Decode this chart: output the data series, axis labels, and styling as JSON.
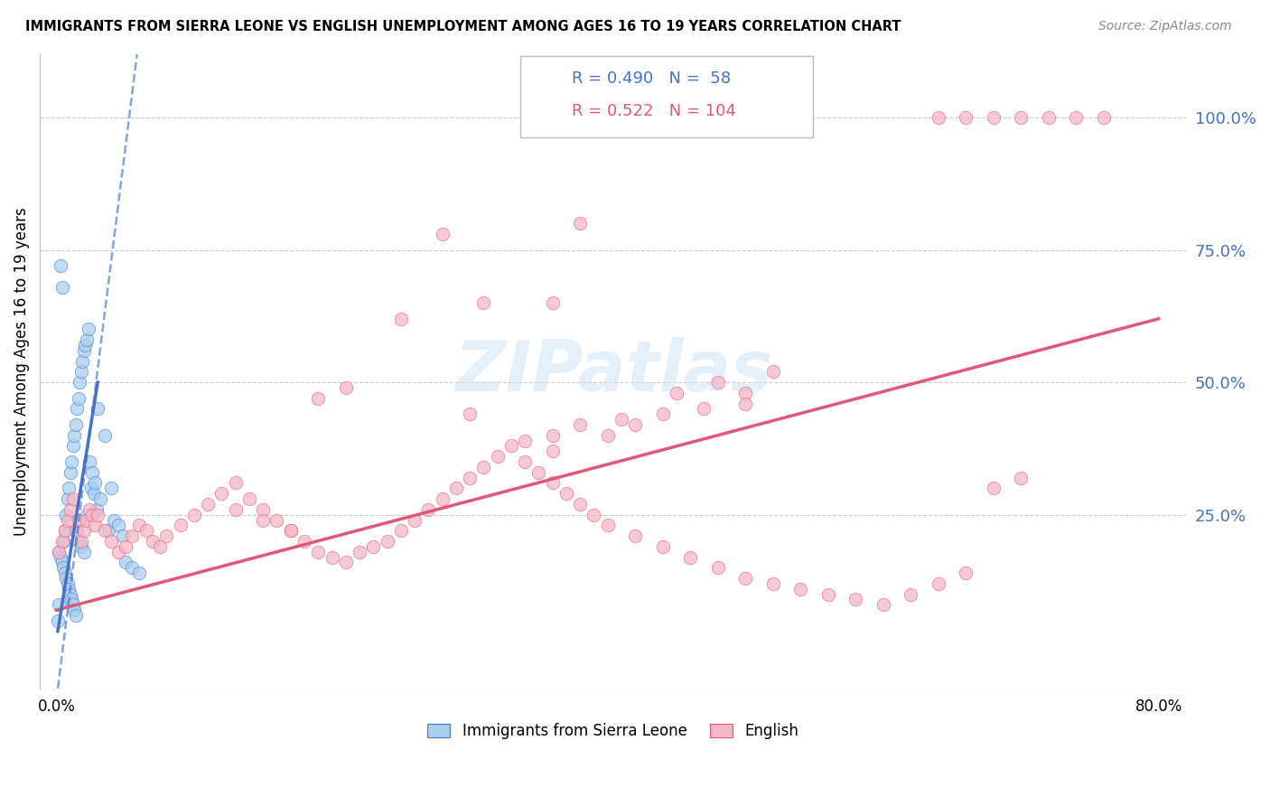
{
  "title": "IMMIGRANTS FROM SIERRA LEONE VS ENGLISH UNEMPLOYMENT AMONG AGES 16 TO 19 YEARS CORRELATION CHART",
  "source": "Source: ZipAtlas.com",
  "ylabel": "Unemployment Among Ages 16 to 19 years",
  "legend_label_blue": "Immigrants from Sierra Leone",
  "legend_label_pink": "English",
  "R_blue": 0.49,
  "N_blue": 58,
  "R_pink": 0.522,
  "N_pink": 104,
  "color_blue": "#a8d0f0",
  "color_blue_dark": "#4472c4",
  "color_pink": "#f5b8c8",
  "color_pink_dark": "#e05878",
  "color_right_axis": "#4472c4",
  "yticks_right": [
    0.25,
    0.5,
    0.75,
    1.0
  ],
  "ytick_right_labels": [
    "25.0%",
    "50.0%",
    "75.0%",
    "100.0%"
  ],
  "blue_scatter_x": [
    0.001,
    0.002,
    0.003,
    0.004,
    0.005,
    0.006,
    0.007,
    0.008,
    0.009,
    0.01,
    0.011,
    0.012,
    0.013,
    0.014,
    0.015,
    0.016,
    0.017,
    0.018,
    0.019,
    0.02,
    0.021,
    0.022,
    0.023,
    0.024,
    0.025,
    0.026,
    0.027,
    0.028,
    0.029,
    0.03,
    0.032,
    0.035,
    0.038,
    0.04,
    0.042,
    0.045,
    0.048,
    0.05,
    0.055,
    0.06,
    0.002,
    0.003,
    0.004,
    0.005,
    0.006,
    0.007,
    0.008,
    0.009,
    0.01,
    0.011,
    0.012,
    0.013,
    0.014,
    0.015,
    0.016,
    0.018,
    0.02,
    0.022
  ],
  "blue_scatter_y": [
    0.05,
    0.08,
    0.72,
    0.68,
    0.2,
    0.22,
    0.25,
    0.28,
    0.3,
    0.33,
    0.35,
    0.38,
    0.4,
    0.42,
    0.45,
    0.47,
    0.5,
    0.52,
    0.54,
    0.56,
    0.57,
    0.58,
    0.6,
    0.35,
    0.3,
    0.33,
    0.29,
    0.31,
    0.26,
    0.45,
    0.28,
    0.4,
    0.22,
    0.3,
    0.24,
    0.23,
    0.21,
    0.16,
    0.15,
    0.14,
    0.18,
    0.17,
    0.16,
    0.15,
    0.14,
    0.13,
    0.12,
    0.11,
    0.1,
    0.09,
    0.08,
    0.07,
    0.06,
    0.22,
    0.2,
    0.19,
    0.18,
    0.25
  ],
  "pink_scatter_x": [
    0.002,
    0.004,
    0.006,
    0.008,
    0.01,
    0.012,
    0.014,
    0.016,
    0.018,
    0.02,
    0.022,
    0.024,
    0.026,
    0.028,
    0.03,
    0.035,
    0.04,
    0.045,
    0.05,
    0.055,
    0.06,
    0.065,
    0.07,
    0.075,
    0.08,
    0.09,
    0.1,
    0.11,
    0.12,
    0.13,
    0.14,
    0.15,
    0.16,
    0.17,
    0.18,
    0.19,
    0.2,
    0.21,
    0.22,
    0.23,
    0.24,
    0.25,
    0.26,
    0.27,
    0.28,
    0.29,
    0.3,
    0.31,
    0.32,
    0.33,
    0.34,
    0.35,
    0.36,
    0.37,
    0.38,
    0.39,
    0.4,
    0.42,
    0.44,
    0.46,
    0.48,
    0.5,
    0.52,
    0.54,
    0.56,
    0.58,
    0.6,
    0.62,
    0.64,
    0.66,
    0.68,
    0.7,
    0.36,
    0.38,
    0.3,
    0.45,
    0.47,
    0.41,
    0.34,
    0.36,
    0.48,
    0.5,
    0.28,
    0.31,
    0.25,
    0.21,
    0.19,
    0.17,
    0.15,
    0.13,
    0.5,
    0.52,
    0.38,
    0.36,
    0.74,
    0.76,
    0.72,
    0.7,
    0.68,
    0.66,
    0.64,
    0.44,
    0.42,
    0.4
  ],
  "pink_scatter_y": [
    0.18,
    0.2,
    0.22,
    0.24,
    0.26,
    0.28,
    0.22,
    0.24,
    0.2,
    0.22,
    0.24,
    0.26,
    0.25,
    0.23,
    0.25,
    0.22,
    0.2,
    0.18,
    0.19,
    0.21,
    0.23,
    0.22,
    0.2,
    0.19,
    0.21,
    0.23,
    0.25,
    0.27,
    0.29,
    0.31,
    0.28,
    0.26,
    0.24,
    0.22,
    0.2,
    0.18,
    0.17,
    0.16,
    0.18,
    0.19,
    0.2,
    0.22,
    0.24,
    0.26,
    0.28,
    0.3,
    0.32,
    0.34,
    0.36,
    0.38,
    0.35,
    0.33,
    0.31,
    0.29,
    0.27,
    0.25,
    0.23,
    0.21,
    0.19,
    0.17,
    0.15,
    0.13,
    0.12,
    0.11,
    0.1,
    0.09,
    0.08,
    0.1,
    0.12,
    0.14,
    0.3,
    0.32,
    0.4,
    0.42,
    0.44,
    0.48,
    0.45,
    0.43,
    0.39,
    0.37,
    0.5,
    0.48,
    0.78,
    0.65,
    0.62,
    0.49,
    0.47,
    0.22,
    0.24,
    0.26,
    0.46,
    0.52,
    0.8,
    0.65,
    1.0,
    1.0,
    1.0,
    1.0,
    1.0,
    1.0,
    1.0,
    0.44,
    0.42,
    0.4
  ]
}
